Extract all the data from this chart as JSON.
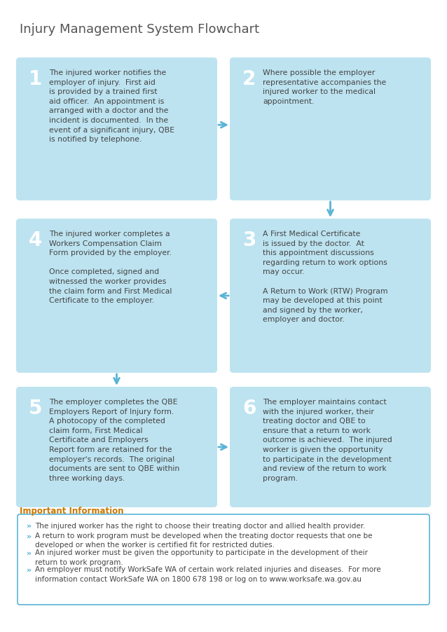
{
  "title": "Injury Management System Flowchart",
  "title_color": "#555555",
  "title_fontsize": 13,
  "bg_color": "#ffffff",
  "box_color": "#bde3f0",
  "text_color": "#444444",
  "number_color": "#ffffff",
  "number_bg": "#7cc8e0",
  "arrow_color": "#5ab4d6",
  "info_border": "#5ab4d6",
  "info_bg": "#ffffff",
  "info_title": "Important Information",
  "info_title_color": "#cc7700",
  "boxes": [
    {
      "num": "1",
      "col": 0,
      "row": 0,
      "text": "The injured worker notifies the\nemployer of injury.  First aid\nis provided by a trained first\naid officer.  An appointment is\narranged with a doctor and the\nincident is documented.  In the\nevent of a significant injury, QBE\nis notified by telephone."
    },
    {
      "num": "2",
      "col": 1,
      "row": 0,
      "text": "Where possible the employer\nrepresentative accompanies the\ninjured worker to the medical\nappointment."
    },
    {
      "num": "3",
      "col": 1,
      "row": 1,
      "text": "A First Medical Certificate\nis issued by the doctor.  At\nthis appointment discussions\nregarding return to work options\nmay occur.\n\nA Return to Work (RTW) Program\nmay be developed at this point\nand signed by the worker,\nemployer and doctor."
    },
    {
      "num": "4",
      "col": 0,
      "row": 1,
      "text": "The injured worker completes a\nWorkers Compensation Claim\nForm provided by the employer.\n\nOnce completed, signed and\nwitnessed the worker provides\nthe claim form and First Medical\nCertificate to the employer."
    },
    {
      "num": "5",
      "col": 0,
      "row": 2,
      "text": "The employer completes the QBE\nEmployers Report of Injury form.\nA photocopy of the completed\nclaim form, First Medical\nCertificate and Employers\nReport form are retained for the\nemployer's records.  The original\ndocuments are sent to QBE within\nthree working days."
    },
    {
      "num": "6",
      "col": 1,
      "row": 2,
      "text": "The employer maintains contact\nwith the injured worker, their\ntreating doctor and QBE to\nensure that a return to work\noutcome is achieved.  The injured\nworker is given the opportunity\nto participate in the development\nand review of the return to work\nprogram."
    }
  ],
  "info_bullets": [
    "The injured worker has the right to choose their treating doctor and allied health provider.",
    "A return to work program must be developed when the treating doctor requests that one be\ndeveloped or when the worker is certified fit for restricted duties.",
    "An injured worker must be given the opportunity to participate in the development of their\nreturn to work program.",
    "An employer must notify WorkSafe WA of certain work related injuries and diseases.  For more\ninformation contact WorkSafe WA on 1800 678 198 or log on to www.worksafe.wa.gov.au"
  ]
}
